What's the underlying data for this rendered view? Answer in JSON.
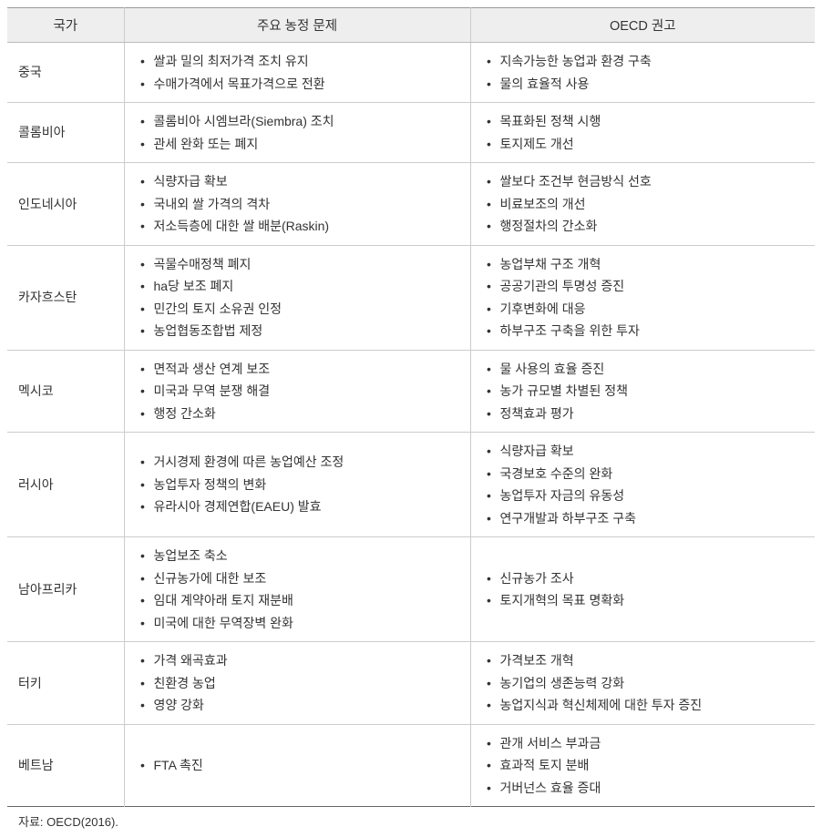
{
  "table": {
    "headers": {
      "country": "국가",
      "issues": "주요 농정 문제",
      "reco": "OECD 권고"
    },
    "rows": [
      {
        "country": "중국",
        "issues": [
          "쌀과 밀의 최저가격 조치 유지",
          "수매가격에서 목표가격으로 전환"
        ],
        "reco": [
          "지속가능한 농업과 환경 구축",
          "물의 효율적 사용"
        ]
      },
      {
        "country": "콜롬비아",
        "issues": [
          "콜롬비아 시엠브라(Siembra) 조치",
          "관세 완화 또는 폐지"
        ],
        "reco": [
          "목표화된 정책 시행",
          "토지제도 개선"
        ]
      },
      {
        "country": "인도네시아",
        "issues": [
          "식량자급 확보",
          "국내외 쌀 가격의 격차",
          "저소득층에 대한 쌀 배분(Raskin)"
        ],
        "reco": [
          "쌀보다 조건부 현금방식 선호",
          "비료보조의 개선",
          "행정절차의 간소화"
        ]
      },
      {
        "country": "카자흐스탄",
        "issues": [
          "곡물수매정책 폐지",
          "ha당 보조 폐지",
          "민간의 토지 소유권 인정",
          "농업협동조합법 제정"
        ],
        "reco": [
          "농업부채 구조 개혁",
          "공공기관의 투명성 증진",
          "기후변화에 대응",
          "하부구조 구축을 위한 투자"
        ]
      },
      {
        "country": "멕시코",
        "issues": [
          "면적과 생산 연계 보조",
          "미국과 무역 분쟁 해결",
          "행정 간소화"
        ],
        "reco": [
          "물 사용의 효율 증진",
          "농가 규모별 차별된 정책",
          "정책효과 평가"
        ]
      },
      {
        "country": "러시아",
        "issues": [
          "거시경제 환경에 따른 농업예산 조정",
          "농업투자 정책의 변화",
          "유라시아 경제연합(EAEU) 발효"
        ],
        "reco": [
          "식량자급 확보",
          "국경보호 수준의 완화",
          "농업투자 자금의 유동성",
          "연구개발과 하부구조 구축"
        ]
      },
      {
        "country": "남아프리카",
        "issues": [
          "농업보조 축소",
          "신규농가에 대한 보조",
          "임대 계약아래 토지 재분배",
          "미국에 대한 무역장벽 완화"
        ],
        "reco": [
          "신규농가 조사",
          "토지개혁의 목표 명확화"
        ]
      },
      {
        "country": "터키",
        "issues": [
          "가격 왜곡효과",
          "친환경 농업",
          "영양 강화"
        ],
        "reco": [
          "가격보조 개혁",
          "농기업의 생존능력 강화",
          "농업지식과 혁신체제에 대한 투자 증진"
        ]
      },
      {
        "country": "베트남",
        "issues": [
          "FTA 촉진"
        ],
        "reco": [
          "관개 서비스 부과금",
          "효과적 토지 분배",
          "거버넌스 효율 증대"
        ]
      }
    ]
  },
  "source_label": "자료: OECD(2016)."
}
